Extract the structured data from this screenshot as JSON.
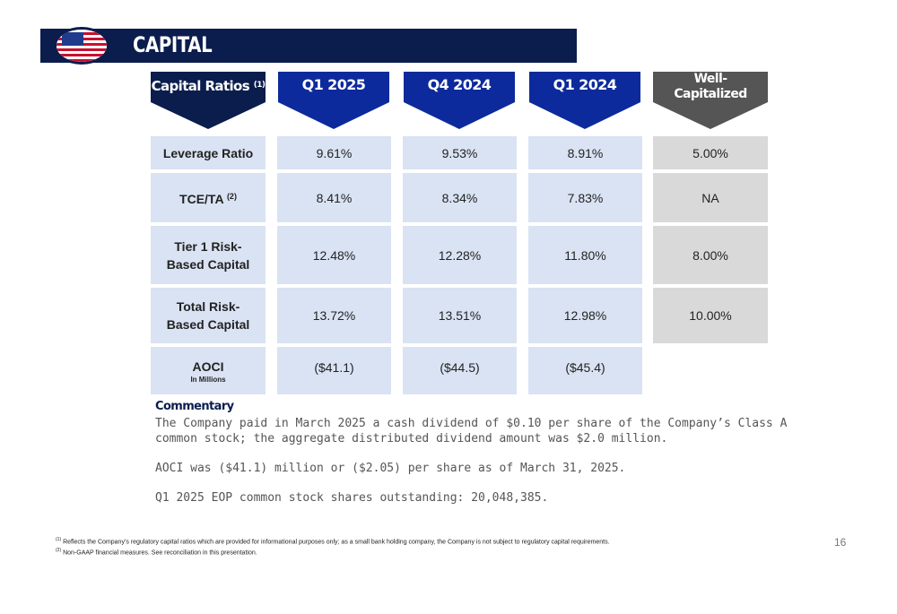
{
  "header": {
    "title": "CAPITAL"
  },
  "table": {
    "columns": [
      {
        "label": "Capital Ratios",
        "note": "(1)"
      },
      {
        "label": "Q1 2025"
      },
      {
        "label": "Q4 2024"
      },
      {
        "label": "Q1 2024"
      },
      {
        "label_line1": "Well-",
        "label_line2": "Capitalized"
      }
    ],
    "rows": [
      {
        "label": "Leverage Ratio",
        "q1_2025": "9.61%",
        "q4_2024": "9.53%",
        "q1_2024": "8.91%",
        "well": "5.00%"
      },
      {
        "label": "TCE/TA",
        "note": "(2)",
        "q1_2025": "8.41%",
        "q4_2024": "8.34%",
        "q1_2024": "7.83%",
        "well": "NA"
      },
      {
        "label_line1": "Tier 1 Risk-",
        "label_line2": "Based Capital",
        "q1_2025": "12.48%",
        "q4_2024": "12.28%",
        "q1_2024": "11.80%",
        "well": "8.00%"
      },
      {
        "label_line1": "Total Risk-",
        "label_line2": "Based Capital",
        "q1_2025": "13.72%",
        "q4_2024": "13.51%",
        "q1_2024": "12.98%",
        "well": "10.00%"
      },
      {
        "label": "AOCI",
        "sublabel": "In Millions",
        "q1_2025": "($41.1)",
        "q4_2024": "($44.5)",
        "q1_2024": "($45.4)"
      }
    ]
  },
  "commentary": {
    "title": "Commentary",
    "p1_line1": "The Company paid in March 2025 a cash dividend of $0.10 per share of the Company’s Class A",
    "p1_line2": "common stock; the aggregate distributed dividend amount was $2.0 million.",
    "p2": "AOCI was ($41.1) million or ($2.05) per share as of March 31, 2025.",
    "p3": "Q1 2025 EOP common stock shares outstanding: 20,048,385."
  },
  "footnotes": {
    "n1_mark": "(1)",
    "n1": "Reflects the Company’s regulatory capital ratios which are provided for informational purposes only; as a small bank holding company, the Company is not subject to regulatory capital requirements.",
    "n2_mark": "(2)",
    "n2": "Non-GAAP financial measures. See reconciliation in this presentation."
  },
  "page_number": "16",
  "colors": {
    "navy": "#0b1d4d",
    "header_blue": "#0c2a9c",
    "cell_blue": "#dae3f3",
    "grey_header": "#555555",
    "grey_cell": "#d9d9d9"
  }
}
